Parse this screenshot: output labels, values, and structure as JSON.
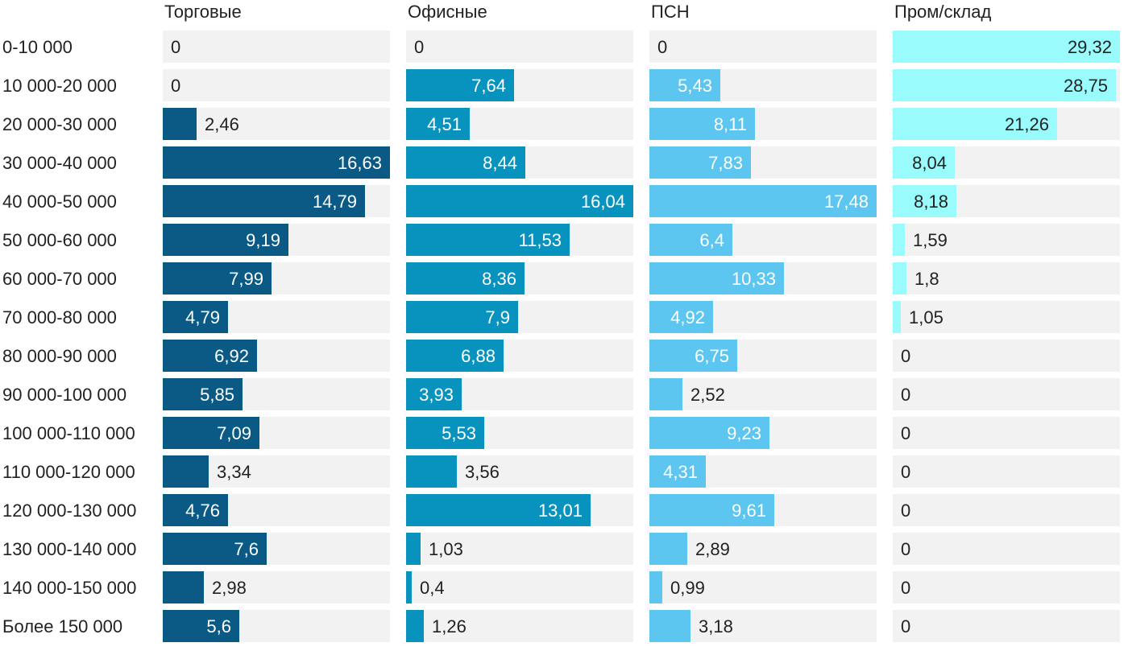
{
  "chart_data": {
    "type": "bar",
    "orientation": "horizontal",
    "layout": "small-multiples",
    "categories": [
      "0-10 000",
      "10 000-20 000",
      "20 000-30 000",
      "30 000-40 000",
      "40 000-50 000",
      "50 000-60 000",
      "60 000-70 000",
      "70 000-80 000",
      "80 000-90 000",
      "90 000-100 000",
      "100 000-110 000",
      "110 000-120 000",
      "120 000-130 000",
      "130 000-140 000",
      "140 000-150 000",
      "Более 150 000"
    ],
    "series": [
      {
        "name": "Торговые",
        "color": "#0a5a85",
        "values": [
          "0",
          "0",
          "2,46",
          "16,63",
          "14,79",
          "9,19",
          "7,99",
          "4,79",
          "6,92",
          "5,85",
          "7,09",
          "3,34",
          "4,76",
          "7,6",
          "2,98",
          "5,6"
        ]
      },
      {
        "name": "Офисные",
        "color": "#0893bf",
        "values": [
          "0",
          "7,64",
          "4,51",
          "8,44",
          "16,04",
          "11,53",
          "8,36",
          "7,9",
          "6,88",
          "3,93",
          "5,53",
          "3,56",
          "13,01",
          "1,03",
          "0,4",
          "1,26"
        ]
      },
      {
        "name": "ПСН",
        "color": "#5cc6f0",
        "values": [
          "0",
          "5,43",
          "8,11",
          "7,83",
          "17,48",
          "6,4",
          "10,33",
          "4,92",
          "6,75",
          "2,52",
          "9,23",
          "4,31",
          "9,61",
          "2,89",
          "0,99",
          "3,18"
        ]
      },
      {
        "name": "Пром/склад",
        "color": "#99fbfb",
        "values": [
          "29,32",
          "28,75",
          "21,26",
          "8,04",
          "8,18",
          "1,59",
          "1,8",
          "1,05",
          "0",
          "0",
          "0",
          "0",
          "0",
          "0",
          "0",
          "0"
        ]
      }
    ],
    "track_color": "#f2f2f2",
    "label_color_dark": "#222222",
    "label_color_light": "#ffffff",
    "grid": false,
    "legend": "none"
  }
}
